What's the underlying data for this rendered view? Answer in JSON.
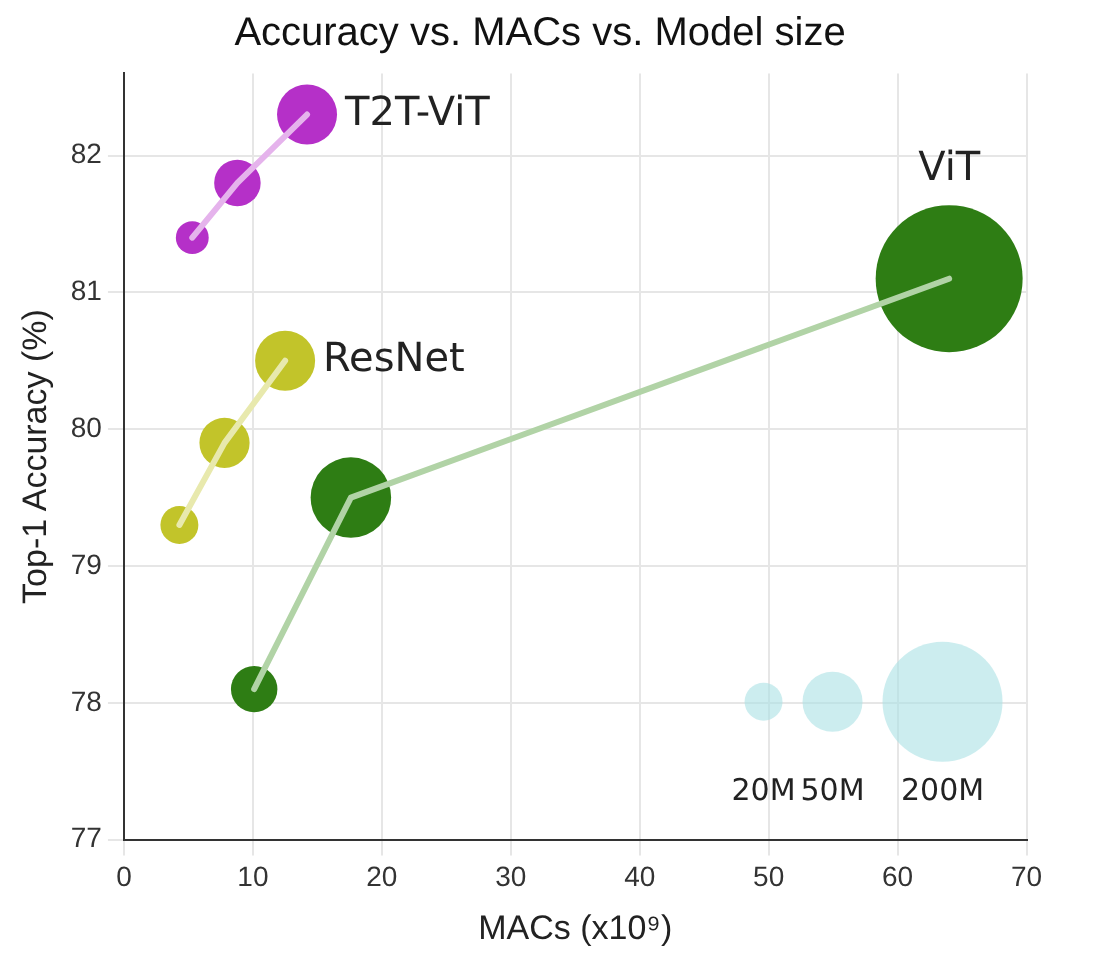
{
  "chart_data": {
    "type": "bubble",
    "title": "Accuracy vs. MACs vs. Model size",
    "xlabel": "MACs (x10⁹)",
    "ylabel": "Top-1 Accuracy (%)",
    "xlim": [
      0,
      70
    ],
    "xticks": [
      0,
      10,
      20,
      30,
      40,
      50,
      60,
      70
    ],
    "ylim": [
      77,
      82.6
    ],
    "yticks": [
      77,
      78,
      79,
      80,
      81,
      82
    ],
    "grid": true,
    "legend": false,
    "size_legend": [
      {
        "value": 20,
        "label": "20M"
      },
      {
        "value": 50,
        "label": "50M"
      },
      {
        "value": 200,
        "label": "200M"
      }
    ],
    "series": [
      {
        "type": "line",
        "color": "#e5b3ec",
        "x": [
          5.3,
          8.8,
          14.2
        ],
        "values": [
          81.4,
          81.8,
          82.3
        ]
      },
      {
        "type": "line",
        "color": "#e8e9ad",
        "x": [
          4.3,
          7.8,
          12.5
        ],
        "values": [
          79.3,
          79.9,
          80.5
        ]
      },
      {
        "type": "line",
        "color": "#b1d3a6",
        "x": [
          10.1,
          17.6,
          64
        ],
        "values": [
          78.1,
          79.5,
          81.1
        ]
      },
      {
        "name": "T2T-ViT",
        "color": "#b530c8",
        "x": [
          5.3,
          8.8,
          14.2
        ],
        "values": [
          81.4,
          81.8,
          82.3
        ],
        "sizes": [
          15,
          30,
          50
        ]
      },
      {
        "name": "ResNet",
        "color": "#c2c42a",
        "x": [
          4.3,
          7.8,
          12.5
        ],
        "values": [
          79.3,
          79.9,
          80.5
        ],
        "sizes": [
          20,
          35,
          50
        ]
      },
      {
        "name": "ViT",
        "color": "#2e7d14",
        "x": [
          10.1,
          17.6,
          64
        ],
        "values": [
          78.1,
          79.5,
          81.1
        ],
        "sizes": [
          30,
          90,
          300
        ]
      }
    ]
  }
}
